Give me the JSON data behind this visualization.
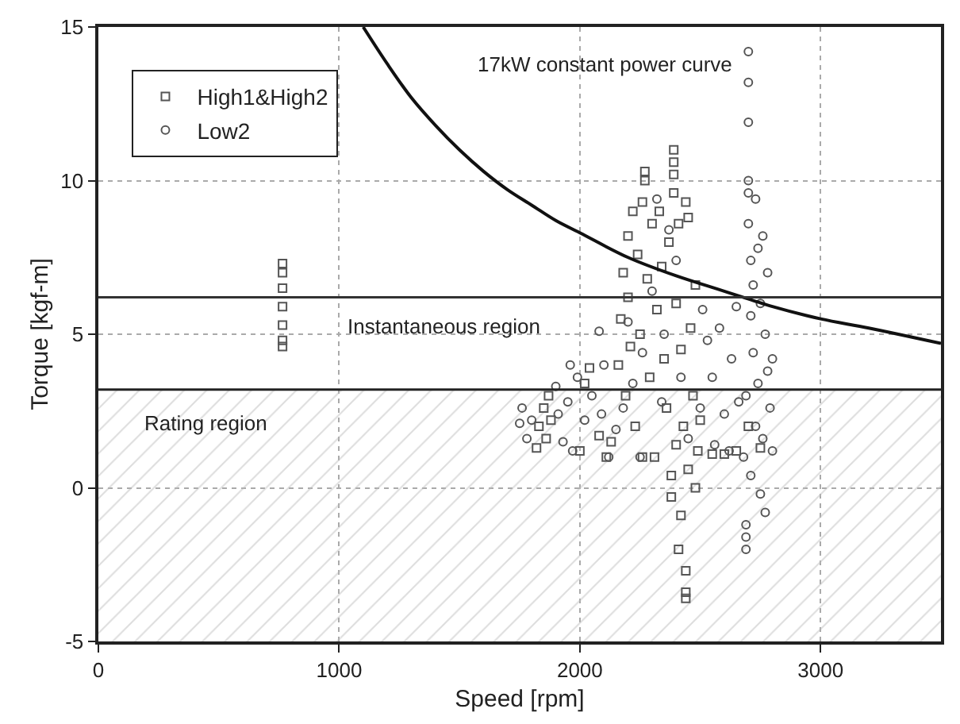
{
  "chart_data": {
    "type": "scatter",
    "xlabel": "Speed [rpm]",
    "ylabel": "Torque [kgf-m]",
    "xlim": [
      0,
      3500
    ],
    "ylim": [
      -5,
      15
    ],
    "xticks": [
      0,
      1000,
      2000,
      3000
    ],
    "yticks": [
      -5,
      0,
      5,
      10,
      15
    ],
    "grid": true,
    "legend": "top left",
    "series": [
      {
        "name": "High1&High2",
        "color": "#555555",
        "marker": "square",
        "x": [
          765,
          765,
          765,
          765,
          765,
          765,
          765,
          1820,
          1830,
          1850,
          1860,
          1870,
          1880,
          2000,
          2020,
          2040,
          2080,
          2110,
          2130,
          2160,
          2170,
          2180,
          2190,
          2200,
          2200,
          2210,
          2220,
          2230,
          2240,
          2250,
          2260,
          2260,
          2270,
          2270,
          2280,
          2290,
          2300,
          2310,
          2320,
          2330,
          2340,
          2350,
          2360,
          2370,
          2380,
          2380,
          2390,
          2390,
          2390,
          2390,
          2400,
          2400,
          2410,
          2410,
          2420,
          2420,
          2430,
          2440,
          2440,
          2440,
          2440,
          2450,
          2450,
          2460,
          2470,
          2480,
          2480,
          2490,
          2500,
          2550,
          2600,
          2650,
          2700,
          2750
        ],
        "values": [
          4.6,
          4.8,
          5.3,
          5.9,
          6.5,
          7.0,
          7.3,
          1.3,
          2.0,
          2.6,
          1.6,
          3.0,
          2.2,
          1.2,
          3.4,
          3.9,
          1.7,
          1.0,
          1.5,
          4.0,
          5.5,
          7.0,
          3.0,
          8.2,
          6.2,
          4.6,
          9.0,
          2.0,
          7.6,
          5.0,
          9.3,
          1.0,
          10.3,
          10.0,
          6.8,
          3.6,
          8.6,
          1.0,
          5.8,
          9.0,
          7.2,
          4.2,
          2.6,
          8.0,
          0.4,
          -0.3,
          11.0,
          10.6,
          10.2,
          9.6,
          6.0,
          1.4,
          8.6,
          -2.0,
          4.5,
          -0.9,
          2.0,
          9.3,
          -2.7,
          -3.4,
          -3.6,
          8.8,
          0.6,
          5.2,
          3.0,
          0.0,
          6.6,
          1.2,
          2.2,
          1.1,
          1.1,
          1.2,
          2.0,
          1.3
        ]
      },
      {
        "name": "Low2",
        "color": "#555555",
        "marker": "circle",
        "x": [
          1750,
          1760,
          1780,
          1800,
          1900,
          1910,
          1930,
          1950,
          1960,
          1970,
          1990,
          2020,
          2050,
          2080,
          2090,
          2100,
          2120,
          2150,
          2180,
          2200,
          2220,
          2250,
          2260,
          2300,
          2320,
          2340,
          2350,
          2370,
          2400,
          2420,
          2450,
          2500,
          2510,
          2530,
          2550,
          2560,
          2580,
          2600,
          2620,
          2630,
          2650,
          2660,
          2680,
          2690,
          2690,
          2690,
          2690,
          2700,
          2700,
          2700,
          2700,
          2700,
          2700,
          2710,
          2710,
          2710,
          2720,
          2720,
          2730,
          2730,
          2740,
          2740,
          2750,
          2750,
          2760,
          2760,
          2770,
          2770,
          2780,
          2780,
          2790,
          2800,
          2800
        ],
        "values": [
          2.1,
          2.6,
          1.6,
          2.2,
          3.3,
          2.4,
          1.5,
          2.8,
          4.0,
          1.2,
          3.6,
          2.2,
          3.0,
          5.1,
          2.4,
          4.0,
          1.0,
          1.9,
          2.6,
          5.4,
          3.4,
          1.0,
          4.4,
          6.4,
          9.4,
          2.8,
          5.0,
          8.4,
          7.4,
          3.6,
          1.6,
          2.6,
          5.8,
          4.8,
          3.6,
          1.4,
          5.2,
          2.4,
          1.2,
          4.2,
          5.9,
          2.8,
          1.0,
          3.0,
          -1.2,
          -1.6,
          -2.0,
          14.2,
          13.2,
          11.9,
          10.0,
          9.6,
          8.6,
          7.4,
          5.6,
          0.4,
          6.6,
          4.4,
          9.4,
          2.0,
          7.8,
          3.4,
          6.0,
          -0.2,
          8.2,
          1.6,
          5.0,
          -0.8,
          3.8,
          7.0,
          2.6,
          4.2,
          1.2
        ]
      },
      {
        "type": "line",
        "color": "#111111",
        "marker": "none",
        "x": [
          1100,
          1200,
          1300,
          1400,
          1500,
          1600,
          1700,
          1800,
          1900,
          2000,
          2200,
          2400,
          2600,
          2800,
          3000,
          3200,
          3500
        ],
        "values": [
          15.0,
          13.8,
          12.7,
          11.8,
          11.0,
          10.3,
          9.7,
          9.2,
          8.7,
          8.3,
          7.5,
          6.9,
          6.4,
          5.9,
          5.5,
          5.2,
          4.7
        ]
      }
    ],
    "ref_lines": [
      {
        "axis": "y",
        "value": 6.2,
        "color": "#333333"
      },
      {
        "axis": "y",
        "value": 3.2,
        "color": "#222222"
      }
    ],
    "bands": [
      {
        "axis": "y",
        "from": -5,
        "to": 3.2,
        "label": "Rating region",
        "color": "#bbbbbb"
      }
    ],
    "annotations": [
      "17kW constant power curve",
      "Instantaneous region"
    ]
  }
}
